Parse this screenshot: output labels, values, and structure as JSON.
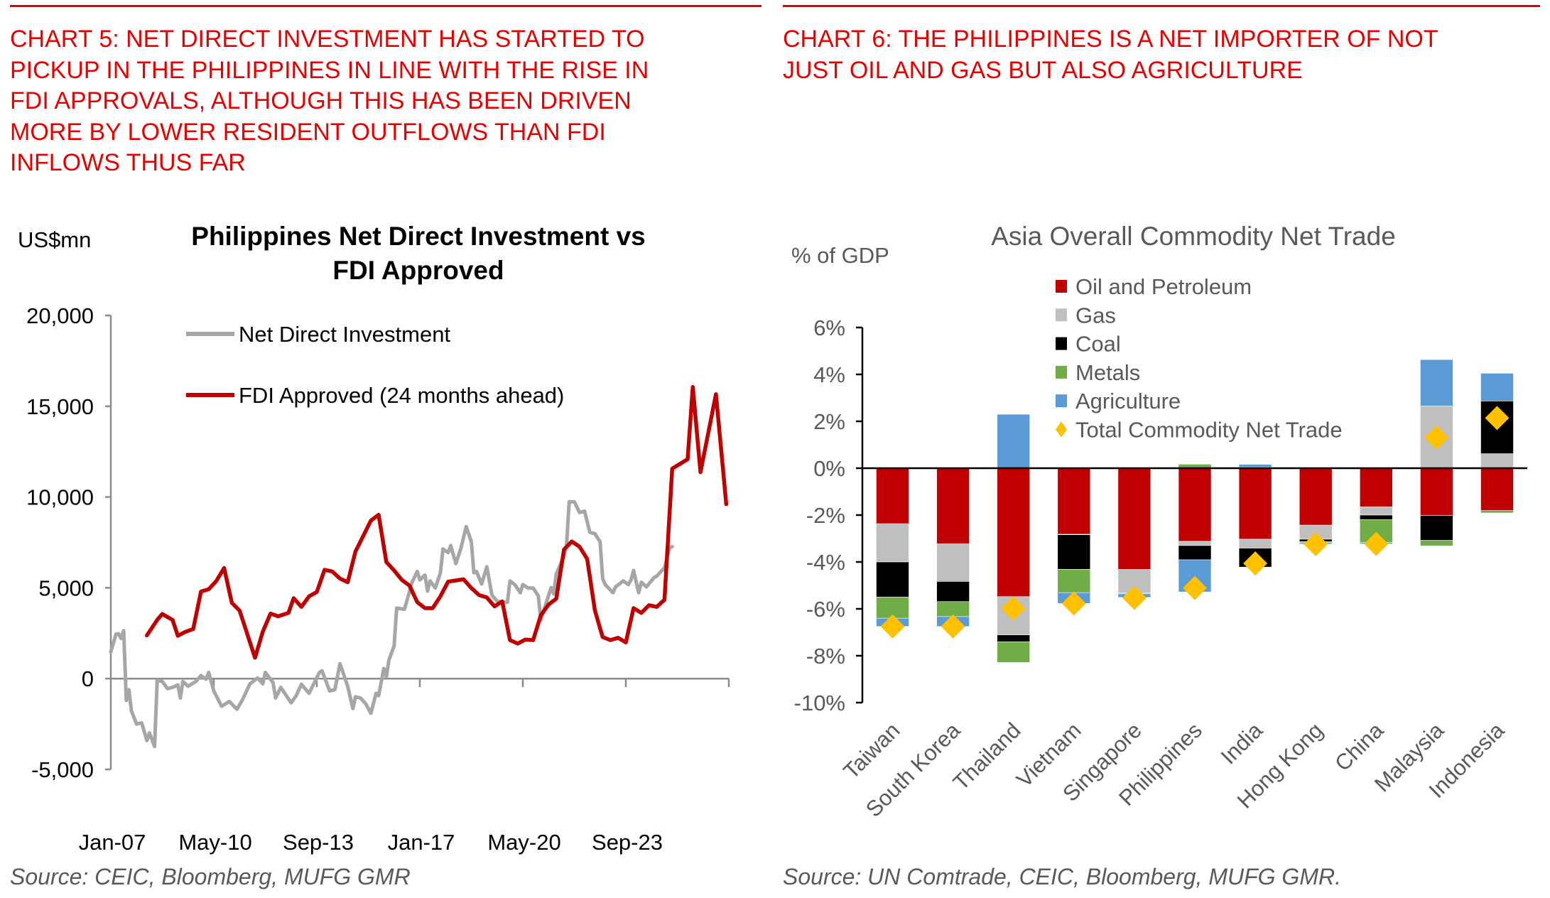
{
  "left_panel": {
    "heading_lines": [
      "CHART 5: NET DIRECT INVESTMENT HAS STARTED TO",
      "PICKUP IN THE PHILIPPINES IN LINE WITH THE RISE IN",
      "FDI APPROVALS, ALTHOUGH THIS HAS BEEN DRIVEN",
      "MORE BY LOWER RESIDENT OUTFLOWS THAN FDI",
      "INFLOWS THUS FAR"
    ],
    "source": "Source: CEIC, Bloomberg, MUFG GMR"
  },
  "right_panel": {
    "heading_lines": [
      "CHART 6: THE PHILIPPINES IS A NET IMPORTER OF NOT",
      "JUST OIL AND GAS BUT ALSO AGRICULTURE"
    ],
    "source": "Source: UN Comtrade, CEIC, Bloomberg, MUFG GMR."
  },
  "colors": {
    "heading_red": "#e60000",
    "ndi_gray": "#a6a6a6",
    "fdi_red": "#c00000",
    "oil": "#c00000",
    "gas": "#bfbfbf",
    "coal": "#000000",
    "metals": "#70ad47",
    "agriculture": "#5b9bd5",
    "total": "#ffc000"
  },
  "chart_data": [
    {
      "type": "line",
      "title_lines": [
        "Philippines Net Direct Investment vs",
        "FDI Approved"
      ],
      "ylabel": "US$mn",
      "xlabel": "",
      "ylim": [
        -5000,
        20000
      ],
      "yticks": [
        20000,
        15000,
        10000,
        5000,
        0,
        -5000
      ],
      "ytick_labels": [
        "20,000",
        "15,000",
        "10,000",
        "5,000",
        "0",
        "-5,000"
      ],
      "xlim": [
        "2007-01",
        "2027-01"
      ],
      "xtick_labels": [
        "Jan-07",
        "May-10",
        "Sep-13",
        "Jan-17",
        "May-20",
        "Sep-23"
      ],
      "xtick_dates": [
        "2007-01",
        "2010-05",
        "2013-09",
        "2017-01",
        "2020-05",
        "2023-09"
      ],
      "legend_position": "top-left",
      "grid": false,
      "series": [
        {
          "name": "Net Direct Investment",
          "color": "#a6a6a6",
          "points": [
            [
              "2007-01",
              1470
            ],
            [
              "2007-03",
              2450
            ],
            [
              "2007-04",
              2470
            ],
            [
              "2007-05",
              2210
            ],
            [
              "2007-06",
              2640
            ],
            [
              "2007-07",
              -1200
            ],
            [
              "2007-08",
              -610
            ],
            [
              "2007-09",
              -1780
            ],
            [
              "2007-11",
              -2500
            ],
            [
              "2008-01",
              -2440
            ],
            [
              "2008-03",
              -3410
            ],
            [
              "2008-04",
              -2990
            ],
            [
              "2008-06",
              -3740
            ],
            [
              "2008-07",
              -90
            ],
            [
              "2008-09",
              -160
            ],
            [
              "2008-11",
              -550
            ],
            [
              "2009-01",
              -480
            ],
            [
              "2009-03",
              -350
            ],
            [
              "2009-04",
              -1070
            ],
            [
              "2009-05",
              -160
            ],
            [
              "2009-07",
              -420
            ],
            [
              "2009-10",
              -160
            ],
            [
              "2009-12",
              170
            ],
            [
              "2010-02",
              -30
            ],
            [
              "2010-03",
              340
            ],
            [
              "2010-05",
              -680
            ],
            [
              "2010-08",
              -1520
            ],
            [
              "2010-11",
              -1260
            ],
            [
              "2011-02",
              -1690
            ],
            [
              "2011-04",
              -1200
            ],
            [
              "2011-07",
              -290
            ],
            [
              "2011-10",
              40
            ],
            [
              "2011-12",
              -290
            ],
            [
              "2012-01",
              340
            ],
            [
              "2012-04",
              -220
            ],
            [
              "2012-05",
              -1070
            ],
            [
              "2012-07",
              -480
            ],
            [
              "2012-11",
              -1330
            ],
            [
              "2013-01",
              -940
            ],
            [
              "2013-03",
              -310
            ],
            [
              "2013-06",
              -810
            ],
            [
              "2013-10",
              340
            ],
            [
              "2013-11",
              430
            ],
            [
              "2014-02",
              -680
            ],
            [
              "2014-04",
              -610
            ],
            [
              "2014-06",
              820
            ],
            [
              "2014-09",
              -420
            ],
            [
              "2014-11",
              -1650
            ],
            [
              "2014-12",
              -1000
            ],
            [
              "2015-02",
              -1070
            ],
            [
              "2015-04",
              -1390
            ],
            [
              "2015-06",
              -1910
            ],
            [
              "2015-08",
              -810
            ],
            [
              "2015-09",
              -940
            ],
            [
              "2015-11",
              560
            ],
            [
              "2015-12",
              100
            ],
            [
              "2016-01",
              1020
            ],
            [
              "2016-03",
              1800
            ],
            [
              "2016-04",
              3880
            ],
            [
              "2016-07",
              3820
            ],
            [
              "2016-09",
              4790
            ],
            [
              "2016-10",
              5310
            ],
            [
              "2016-12",
              5900
            ],
            [
              "2017-01",
              5440
            ],
            [
              "2017-03",
              5700
            ],
            [
              "2017-04",
              4820
            ],
            [
              "2017-05",
              5380
            ],
            [
              "2017-07",
              4990
            ],
            [
              "2017-09",
              5830
            ],
            [
              "2017-10",
              7140
            ],
            [
              "2017-12",
              6940
            ],
            [
              "2018-01",
              7330
            ],
            [
              "2018-03",
              6330
            ],
            [
              "2018-05",
              7200
            ],
            [
              "2018-07",
              8370
            ],
            [
              "2018-09",
              7530
            ],
            [
              "2018-10",
              5830
            ],
            [
              "2018-11",
              5900
            ],
            [
              "2019-01",
              5210
            ],
            [
              "2019-03",
              6160
            ],
            [
              "2019-05",
              4600
            ],
            [
              "2019-07",
              4270
            ],
            [
              "2019-09",
              4210
            ],
            [
              "2019-11",
              4210
            ],
            [
              "2019-12",
              5380
            ],
            [
              "2020-02",
              5160
            ],
            [
              "2020-04",
              4730
            ],
            [
              "2020-05",
              5180
            ],
            [
              "2020-07",
              4990
            ],
            [
              "2020-09",
              4990
            ],
            [
              "2020-11",
              4560
            ],
            [
              "2020-12",
              3230
            ],
            [
              "2021-02",
              4140
            ],
            [
              "2021-04",
              5010
            ],
            [
              "2021-05",
              4660
            ],
            [
              "2021-06",
              5770
            ],
            [
              "2021-09",
              6750
            ],
            [
              "2021-10",
              7400
            ],
            [
              "2021-11",
              9740
            ],
            [
              "2022-01",
              9740
            ],
            [
              "2022-03",
              9150
            ],
            [
              "2022-05",
              9220
            ],
            [
              "2022-07",
              8050
            ],
            [
              "2022-09",
              7980
            ],
            [
              "2022-11",
              7530
            ],
            [
              "2022-12",
              5510
            ],
            [
              "2023-01",
              5180
            ],
            [
              "2023-04",
              4730
            ],
            [
              "2023-05",
              5050
            ],
            [
              "2023-08",
              5380
            ],
            [
              "2023-10",
              5180
            ],
            [
              "2023-11",
              5440
            ],
            [
              "2023-12",
              5960
            ],
            [
              "2024-02",
              4730
            ],
            [
              "2024-03",
              5310
            ],
            [
              "2024-05",
              5050
            ],
            [
              "2024-08",
              5570
            ],
            [
              "2024-09",
              5640
            ],
            [
              "2024-11",
              5960
            ],
            [
              "2024-12",
              6090
            ],
            [
              "2025-02",
              7200
            ],
            [
              "2025-03",
              7270
            ]
          ]
        },
        {
          "name": "FDI Approved (24 months ahead)",
          "color": "#c00000",
          "points": [
            [
              "2008-03",
              2380
            ],
            [
              "2008-07",
              3230
            ],
            [
              "2008-09",
              3560
            ],
            [
              "2009-01",
              3230
            ],
            [
              "2009-03",
              2360
            ],
            [
              "2009-06",
              2580
            ],
            [
              "2009-09",
              2730
            ],
            [
              "2009-12",
              4790
            ],
            [
              "2010-03",
              4920
            ],
            [
              "2010-06",
              5380
            ],
            [
              "2010-09",
              6090
            ],
            [
              "2010-12",
              4170
            ],
            [
              "2011-03",
              3750
            ],
            [
              "2011-09",
              1150
            ],
            [
              "2011-12",
              2580
            ],
            [
              "2012-03",
              3580
            ],
            [
              "2012-06",
              3430
            ],
            [
              "2012-10",
              3620
            ],
            [
              "2012-12",
              4430
            ],
            [
              "2013-03",
              3950
            ],
            [
              "2013-06",
              4530
            ],
            [
              "2013-09",
              4770
            ],
            [
              "2013-12",
              5990
            ],
            [
              "2014-03",
              5900
            ],
            [
              "2014-06",
              5510
            ],
            [
              "2014-09",
              5310
            ],
            [
              "2014-12",
              7000
            ],
            [
              "2015-03",
              7850
            ],
            [
              "2015-06",
              8700
            ],
            [
              "2015-09",
              9020
            ],
            [
              "2015-12",
              6420
            ],
            [
              "2016-03",
              5960
            ],
            [
              "2016-06",
              5440
            ],
            [
              "2016-09",
              5120
            ],
            [
              "2016-12",
              4210
            ],
            [
              "2017-03",
              3880
            ],
            [
              "2017-06",
              3880
            ],
            [
              "2017-09",
              4530
            ],
            [
              "2017-12",
              5340
            ],
            [
              "2018-06",
              5470
            ],
            [
              "2018-09",
              4990
            ],
            [
              "2018-12",
              4600
            ],
            [
              "2019-03",
              4470
            ],
            [
              "2019-06",
              3980
            ],
            [
              "2019-09",
              4250
            ],
            [
              "2019-12",
              2120
            ],
            [
              "2020-03",
              1930
            ],
            [
              "2020-06",
              2150
            ],
            [
              "2020-09",
              2120
            ],
            [
              "2020-12",
              3490
            ],
            [
              "2021-03",
              4080
            ],
            [
              "2021-06",
              4400
            ],
            [
              "2021-09",
              7110
            ],
            [
              "2021-12",
              7550
            ],
            [
              "2022-03",
              7270
            ],
            [
              "2022-06",
              6590
            ],
            [
              "2022-09",
              3750
            ],
            [
              "2022-12",
              2290
            ],
            [
              "2023-03",
              2120
            ],
            [
              "2023-06",
              2250
            ],
            [
              "2023-09",
              1990
            ],
            [
              "2023-12",
              3880
            ],
            [
              "2024-03",
              3620
            ],
            [
              "2024-06",
              4040
            ],
            [
              "2024-09",
              3950
            ],
            [
              "2024-12",
              4340
            ],
            [
              "2025-03",
              11560
            ],
            [
              "2025-09",
              12080
            ],
            [
              "2025-11",
              16060
            ],
            [
              "2026-02",
              11370
            ],
            [
              "2026-08",
              15660
            ],
            [
              "2026-12",
              9610
            ]
          ]
        }
      ]
    },
    {
      "type": "bar",
      "stacked": true,
      "title": "Asia Overall Commodity Net Trade",
      "ylabel": "% of GDP",
      "xlabel": "",
      "ylim": [
        -10,
        6
      ],
      "yticks": [
        6,
        4,
        2,
        0,
        -2,
        -4,
        -6,
        -8,
        -10
      ],
      "ytick_labels": [
        "6%",
        "4%",
        "2%",
        "0%",
        "-2%",
        "-4%",
        "-6%",
        "-8%",
        "-10%"
      ],
      "legend_position": "top-center",
      "grid": false,
      "categories": [
        "Taiwan",
        "South Korea",
        "Thailand",
        "Vietnam",
        "Singapore",
        "Philippines",
        "India",
        "Hong Kong",
        "China",
        "Malaysia",
        "Indonesia"
      ],
      "series": [
        {
          "name": "Oil and Petroleum",
          "color": "#c00000",
          "values": [
            -2.37,
            -3.23,
            -5.48,
            -2.82,
            -4.32,
            -3.12,
            -3.03,
            -2.43,
            -1.65,
            -2.02,
            -1.81
          ]
        },
        {
          "name": "Gas",
          "color": "#bfbfbf",
          "values": [
            -1.63,
            -1.6,
            -1.63,
            -0.02,
            -1.01,
            -0.18,
            -0.38,
            -0.6,
            -0.35,
            2.65,
            0.62
          ]
        },
        {
          "name": "Coal",
          "color": "#000000",
          "values": [
            -1.5,
            -0.86,
            -0.3,
            -1.48,
            0.0,
            -0.61,
            -0.81,
            -0.1,
            -0.2,
            -1.06,
            2.25
          ]
        },
        {
          "name": "Metals",
          "color": "#70ad47",
          "values": [
            -0.9,
            -0.64,
            -0.88,
            -0.99,
            -0.03,
            0.17,
            0.04,
            -0.05,
            -0.97,
            -0.24,
            -0.1
          ]
        },
        {
          "name": "Agriculture",
          "color": "#5b9bd5",
          "values": [
            -0.35,
            -0.42,
            2.3,
            -0.46,
            -0.15,
            -1.37,
            0.12,
            -0.06,
            -0.06,
            1.98,
            1.18
          ]
        }
      ],
      "markers": {
        "name": "Total Commodity Net Trade",
        "color": "#ffc000",
        "shape": "diamond",
        "values": [
          -6.75,
          -6.75,
          -5.99,
          -5.77,
          -5.53,
          -5.11,
          -4.06,
          -3.24,
          -3.23,
          1.31,
          2.14
        ]
      }
    }
  ]
}
